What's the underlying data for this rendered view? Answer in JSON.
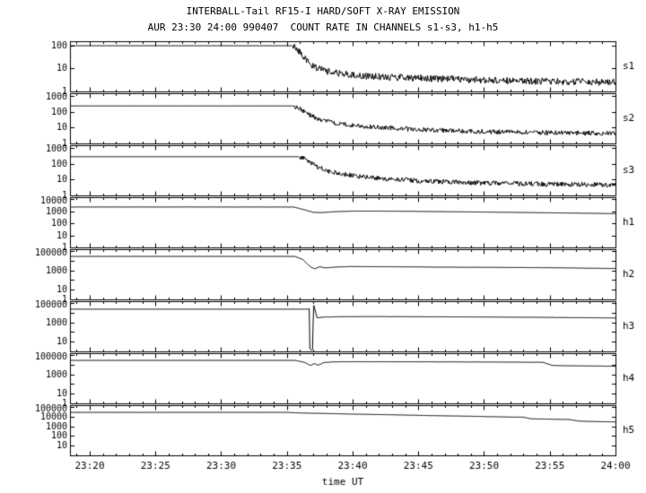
{
  "header": {
    "title": "INTERBALL-Tail RF15-I HARD/SOFT X-RAY EMISSION",
    "subtitle": "AUR 23:30 24:00 990407  COUNT RATE IN CHANNELS s1-s3, h1-h5"
  },
  "chart_data": {
    "type": "line",
    "title": "INTERBALL-Tail RF15-I HARD/SOFT X-RAY EMISSION",
    "subtitle": "AUR 23:30 24:00 990407  COUNT RATE IN CHANNELS s1-s3, h1-h5",
    "xlabel": "time UT",
    "background_color": "#ffffff",
    "line_color": "#000000",
    "x_range": [
      -1.5,
      40
    ],
    "x_minor_step": 1,
    "x_ticks": [
      {
        "t": 0,
        "label": "23:20"
      },
      {
        "t": 5,
        "label": "23:25"
      },
      {
        "t": 10,
        "label": "23:30"
      },
      {
        "t": 15,
        "label": "23:35"
      },
      {
        "t": 20,
        "label": "23:40"
      },
      {
        "t": 25,
        "label": "23:45"
      },
      {
        "t": 30,
        "label": "23:50"
      },
      {
        "t": 35,
        "label": "23:55"
      },
      {
        "t": 40,
        "label": "24:00"
      }
    ],
    "panels": [
      {
        "name": "s1",
        "ylim": [
          1,
          150
        ],
        "ytick_labels": [
          "100",
          "10",
          "1"
        ],
        "noise_from": 15.5,
        "noise_amp": 0.15,
        "points": [
          [
            -1.5,
            100
          ],
          [
            15.4,
            100
          ],
          [
            15.9,
            60
          ],
          [
            16.5,
            25
          ],
          [
            17,
            13
          ],
          [
            18,
            8
          ],
          [
            19,
            6.5
          ],
          [
            20,
            5.5
          ],
          [
            22,
            4.5
          ],
          [
            25,
            4
          ],
          [
            28,
            3.5
          ],
          [
            32,
            3
          ],
          [
            36,
            2.8
          ],
          [
            40,
            2.6
          ]
        ]
      },
      {
        "name": "s2",
        "ylim": [
          1,
          1500
        ],
        "ytick_labels": [
          "1000",
          "100",
          "10",
          "1"
        ],
        "noise_from": 15.6,
        "noise_amp": 0.15,
        "points": [
          [
            -1.5,
            250
          ],
          [
            15.5,
            250
          ],
          [
            16.1,
            150
          ],
          [
            16.8,
            60
          ],
          [
            17.5,
            35
          ],
          [
            18.5,
            22
          ],
          [
            20,
            15
          ],
          [
            22,
            11
          ],
          [
            25,
            8
          ],
          [
            30,
            6
          ],
          [
            35,
            5
          ],
          [
            40,
            4.5
          ]
        ]
      },
      {
        "name": "s3",
        "ylim": [
          1,
          1500
        ],
        "ytick_labels": [
          "1000",
          "100",
          "10",
          "1"
        ],
        "noise_from": 16.0,
        "noise_amp": 0.15,
        "points": [
          [
            -1.5,
            300
          ],
          [
            15.9,
            300
          ],
          [
            16.6,
            180
          ],
          [
            17.3,
            70
          ],
          [
            18,
            40
          ],
          [
            19,
            26
          ],
          [
            20,
            19
          ],
          [
            22,
            13
          ],
          [
            25,
            9
          ],
          [
            30,
            6.5
          ],
          [
            35,
            5.5
          ],
          [
            40,
            5
          ]
        ]
      },
      {
        "name": "h1",
        "ylim": [
          1,
          15000
        ],
        "ytick_labels": [
          "10000",
          "1000",
          "100",
          "10",
          "1"
        ],
        "noise_from": -1.5,
        "noise_amp": 0.008,
        "points": [
          [
            -1.5,
            2500
          ],
          [
            15.5,
            2500
          ],
          [
            16.3,
            1500
          ],
          [
            17,
            900
          ],
          [
            17.6,
            850
          ],
          [
            18.5,
            1000
          ],
          [
            19.5,
            1100
          ],
          [
            21,
            1150
          ],
          [
            24,
            1100
          ],
          [
            28,
            1000
          ],
          [
            32,
            900
          ],
          [
            36,
            800
          ],
          [
            40,
            700
          ]
        ]
      },
      {
        "name": "h2",
        "ylim": [
          1,
          150000
        ],
        "ytick_labels": [
          "100000",
          "1000",
          "10",
          "1"
        ],
        "noise_from": 16.0,
        "noise_amp": 0.012,
        "points": [
          [
            -1.5,
            30000
          ],
          [
            15.6,
            30000
          ],
          [
            16.2,
            15000
          ],
          [
            16.8,
            2500
          ],
          [
            17.1,
            1600
          ],
          [
            17.5,
            2600
          ],
          [
            17.9,
            2000
          ],
          [
            19,
            2500
          ],
          [
            20,
            2700
          ],
          [
            24,
            2500
          ],
          [
            28,
            2300
          ],
          [
            32,
            2200
          ],
          [
            36,
            2000
          ],
          [
            38,
            1800
          ],
          [
            40,
            1700
          ]
        ]
      },
      {
        "name": "h3",
        "ylim": [
          1,
          150000
        ],
        "ytick_labels": [
          "100000",
          "1000",
          "10"
        ],
        "noise_from": 17.5,
        "noise_amp": 0.015,
        "points": [
          [
            -1.5,
            25000
          ],
          [
            16.6,
            25000
          ],
          [
            16.7,
            28000
          ],
          [
            16.75,
            2
          ],
          [
            16.85,
            1.5
          ],
          [
            16.95,
            1.8
          ],
          [
            17.0,
            1500
          ],
          [
            17.05,
            60000
          ],
          [
            17.15,
            20000
          ],
          [
            17.3,
            3200
          ],
          [
            17.6,
            3600
          ],
          [
            18,
            3900
          ],
          [
            19,
            4200
          ],
          [
            22,
            4300
          ],
          [
            26,
            4100
          ],
          [
            30,
            3900
          ],
          [
            34,
            3600
          ],
          [
            38,
            3300
          ],
          [
            40,
            3100
          ]
        ]
      },
      {
        "name": "h4",
        "ylim": [
          1,
          150000
        ],
        "ytick_labels": [
          "100000",
          "1000",
          "10",
          "1"
        ],
        "noise_from": 16.0,
        "noise_amp": 0.012,
        "points": [
          [
            -1.5,
            30000
          ],
          [
            15.6,
            30000
          ],
          [
            16.3,
            20000
          ],
          [
            16.8,
            9000
          ],
          [
            17.1,
            14000
          ],
          [
            17.4,
            9500
          ],
          [
            17.8,
            18000
          ],
          [
            18.5,
            21000
          ],
          [
            20,
            22000
          ],
          [
            24,
            21500
          ],
          [
            28,
            21000
          ],
          [
            32,
            20000
          ],
          [
            34.5,
            19000
          ],
          [
            35.2,
            9000
          ],
          [
            36,
            8500
          ],
          [
            38,
            8000
          ],
          [
            40,
            7500
          ]
        ]
      },
      {
        "name": "h5",
        "ylim": [
          1,
          150000
        ],
        "ytick_labels": [
          "100000",
          "10000",
          "1000",
          "100",
          "10"
        ],
        "noise_from": -1.5,
        "noise_amp": 0.006,
        "points": [
          [
            -1.5,
            30000
          ],
          [
            15,
            30000
          ],
          [
            16,
            26000
          ],
          [
            18,
            23000
          ],
          [
            20,
            20000
          ],
          [
            23,
            17000
          ],
          [
            26,
            14000
          ],
          [
            29,
            12000
          ],
          [
            31,
            10500
          ],
          [
            33,
            9500
          ],
          [
            33.6,
            6500
          ],
          [
            35,
            6000
          ],
          [
            36.5,
            5500
          ],
          [
            37.2,
            3800
          ],
          [
            38.5,
            3400
          ],
          [
            40,
            3100
          ]
        ]
      }
    ]
  }
}
